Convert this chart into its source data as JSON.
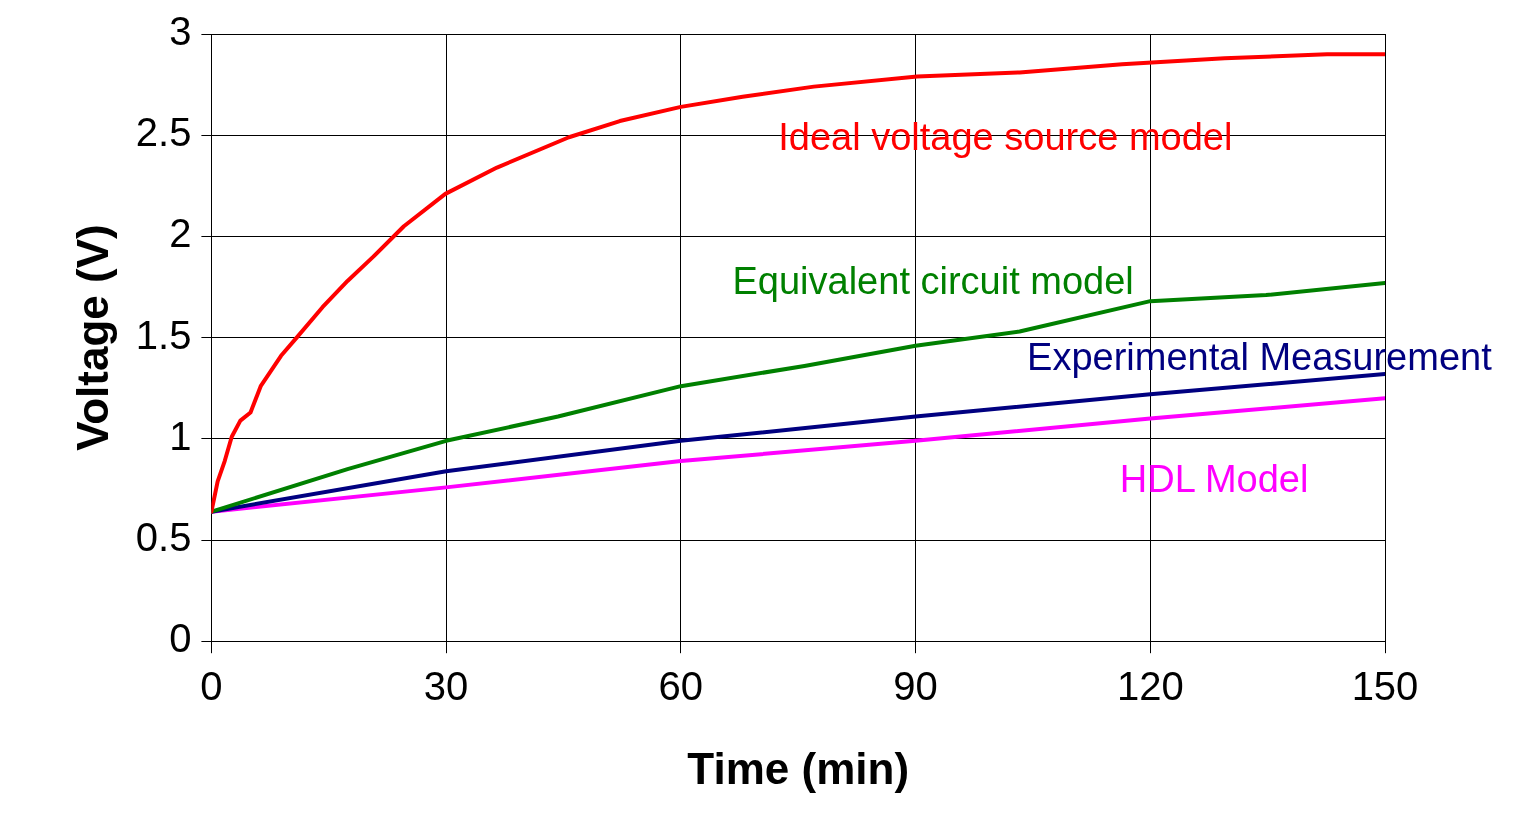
{
  "chart_data": {
    "type": "line",
    "xlabel": "Time (min)",
    "ylabel": "Voltage (V)",
    "xlim": [
      0,
      150
    ],
    "xticks": [
      0,
      30,
      60,
      90,
      120,
      150
    ],
    "ylim": [
      0,
      3
    ],
    "yticks": [
      0,
      0.5,
      1,
      1.5,
      2,
      2.5,
      3
    ],
    "grid": true,
    "legend": false,
    "marker": "none",
    "line_style": "solid",
    "series": [
      {
        "name": "Ideal voltage source model",
        "color": "#ff0000",
        "x": [
          0,
          0.8,
          1.7,
          2.6,
          3.7,
          5,
          6.3,
          8.9,
          10.9,
          14.2,
          17.4,
          20.7,
          24.6,
          29.9,
          36.5,
          45.7,
          52.2,
          60,
          67.9,
          77,
          90.2,
          103.3,
          116.4,
          129.5,
          142.6,
          150
        ],
        "values": [
          0.64,
          0.79,
          0.89,
          1.01,
          1.09,
          1.13,
          1.26,
          1.41,
          1.5,
          1.65,
          1.78,
          1.9,
          2.05,
          2.21,
          2.34,
          2.49,
          2.57,
          2.64,
          2.69,
          2.74,
          2.79,
          2.81,
          2.85,
          2.88,
          2.9,
          2.9
        ]
      },
      {
        "name": "Equivalent circuit model",
        "color": "#008000",
        "x": [
          0,
          17.4,
          30,
          44.3,
          60,
          75.8,
          90,
          103.3,
          120,
          134.8,
          150
        ],
        "values": [
          0.64,
          0.85,
          0.99,
          1.11,
          1.26,
          1.36,
          1.46,
          1.53,
          1.68,
          1.71,
          1.77
        ]
      },
      {
        "name": "Experimental Measurement",
        "color": "#000080",
        "x": [
          0,
          30,
          60,
          90,
          120,
          150
        ],
        "values": [
          0.64,
          0.84,
          0.99,
          1.11,
          1.22,
          1.32
        ]
      },
      {
        "name": "HDL Model",
        "color": "#ff00ff",
        "x": [
          0,
          30,
          60,
          90,
          120,
          150
        ],
        "values": [
          0.64,
          0.76,
          0.89,
          0.99,
          1.1,
          1.2
        ]
      }
    ]
  }
}
